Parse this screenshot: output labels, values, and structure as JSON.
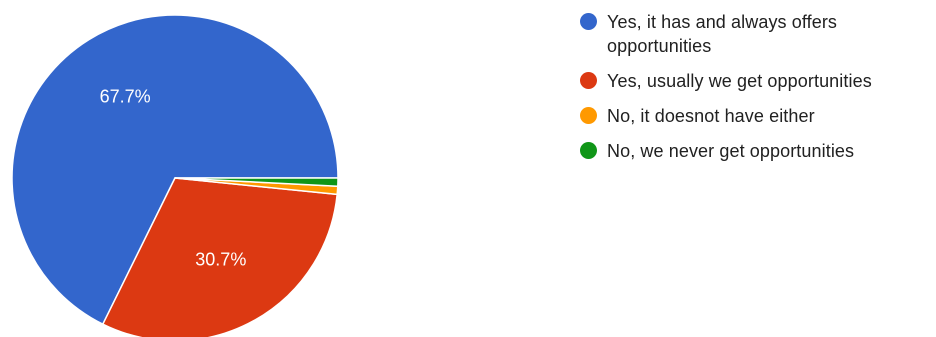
{
  "chart_data": {
    "type": "pie",
    "slices": [
      {
        "label": "Yes, it has and always offers opportunities",
        "value": 67.7,
        "display": "67.7%",
        "color": "#3366cc"
      },
      {
        "label": "Yes, usually we get opportunities",
        "value": 30.7,
        "display": "30.7%",
        "color": "#dc3912"
      },
      {
        "label": "No, it doesnot have either",
        "value": 0.8,
        "display": "",
        "color": "#ff9900"
      },
      {
        "label": "No, we never get opportunities",
        "value": 0.8,
        "display": "",
        "color": "#109618"
      }
    ],
    "legend_position": "right",
    "start": "3 o'clock",
    "direction": "counter-clockwise"
  }
}
